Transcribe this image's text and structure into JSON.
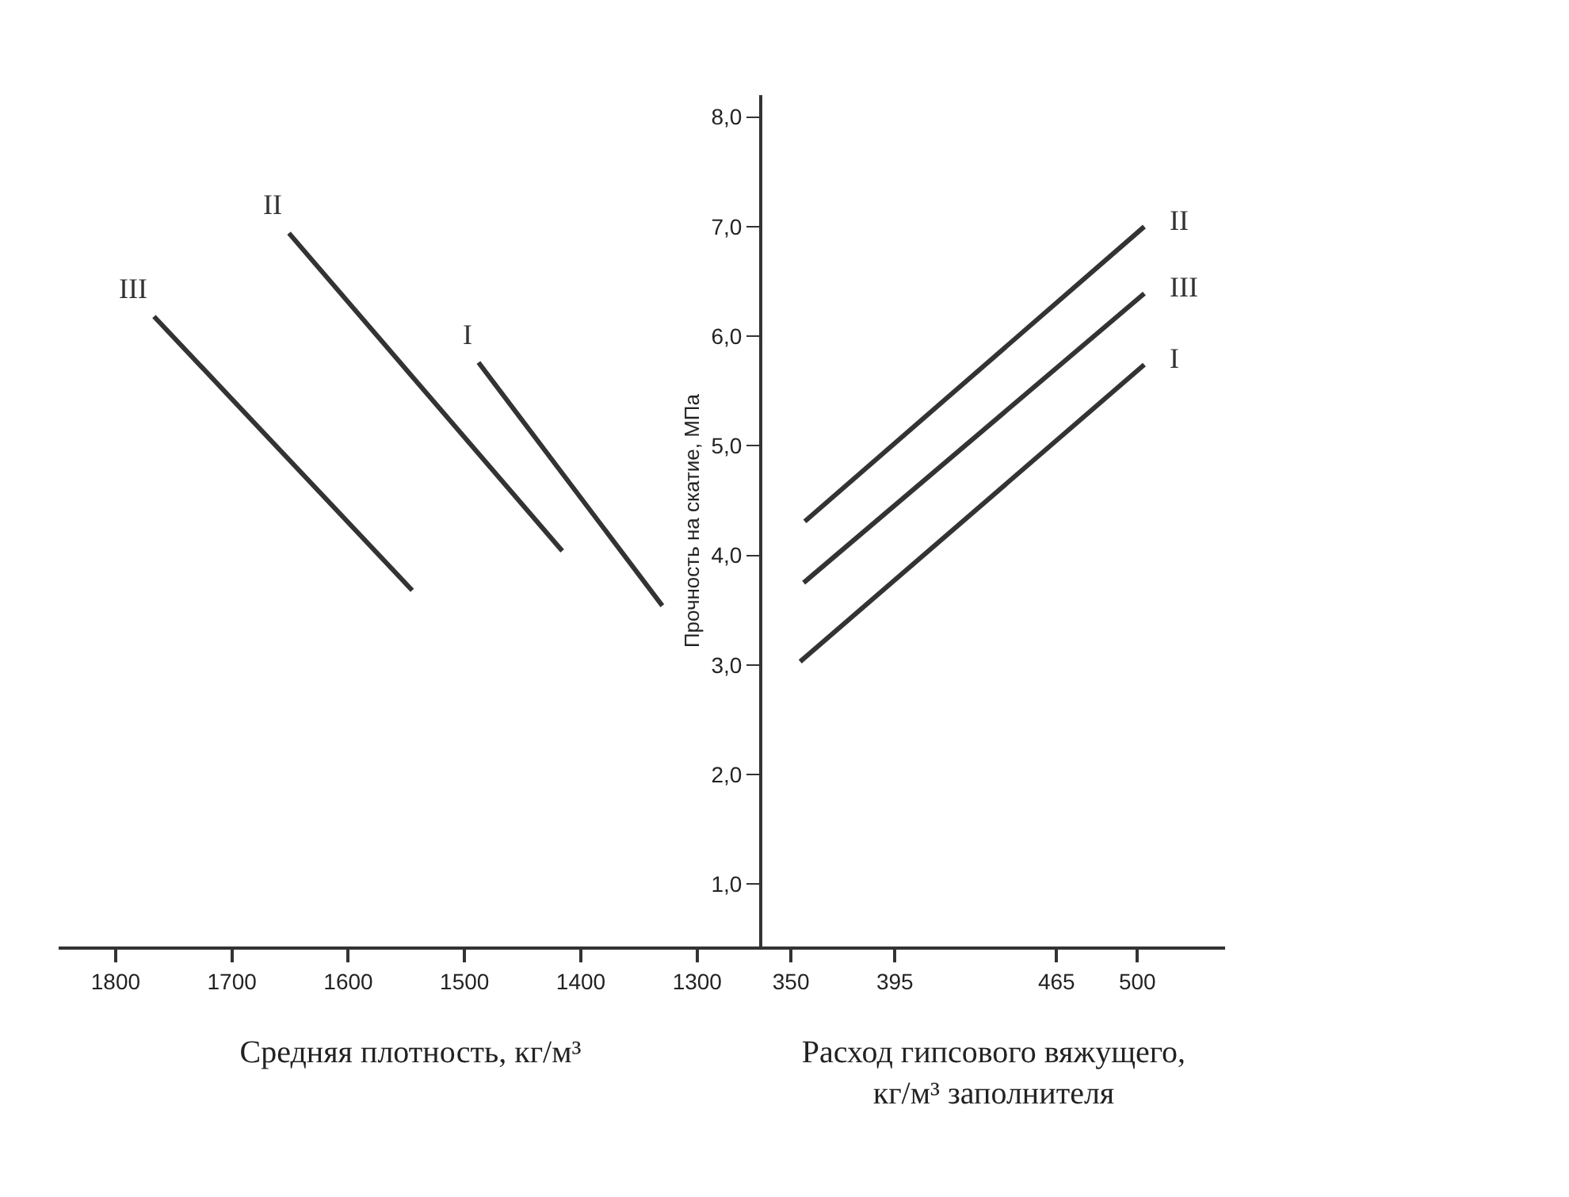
{
  "chart_data": [
    {
      "type": "line",
      "xlabel": "Средняя плотность, кг/м³",
      "xlim": [
        1849,
        1244
      ],
      "xticks": [
        1800,
        1700,
        1600,
        1500,
        1400,
        1300
      ],
      "ylim": [
        0.43,
        8.2
      ],
      "tick_labels": "x",
      "marker": "none",
      "line_style": "solid",
      "series": [
        {
          "name": "III",
          "color": "#333333",
          "x": [
            1767,
            1545
          ],
          "values": [
            6.18,
            3.68
          ]
        },
        {
          "name": "II",
          "color": "#333333",
          "x": [
            1651,
            1416
          ],
          "values": [
            6.94,
            4.04
          ]
        },
        {
          "name": "I",
          "color": "#333333",
          "x": [
            1488,
            1330
          ],
          "values": [
            5.76,
            3.54
          ]
        }
      ]
    },
    {
      "type": "line",
      "xlabel": "Расход гипсового вяжущего,\nкг/м³ заполнителя",
      "ylabel": "Прочность на скатие, МПа",
      "xlim": [
        337.6,
        538
      ],
      "xticks": [
        350,
        395,
        465,
        500
      ],
      "ylim": [
        0.43,
        8.2
      ],
      "yticks": [
        {
          "value": 1,
          "label": "1,0"
        },
        {
          "value": 2,
          "label": "2,0"
        },
        {
          "value": 3,
          "label": "3,0"
        },
        {
          "value": 4,
          "label": "4,0"
        },
        {
          "value": 5,
          "label": "5,0"
        },
        {
          "value": 6,
          "label": "6,0"
        },
        {
          "value": 7,
          "label": "7,0"
        },
        {
          "value": 8,
          "label": "8,0"
        }
      ],
      "marker": "none",
      "line_style": "solid",
      "series": [
        {
          "name": "II",
          "color": "#333333",
          "x": [
            356,
            503
          ],
          "values": [
            4.31,
            7.0
          ]
        },
        {
          "name": "III",
          "color": "#333333",
          "x": [
            355.5,
            503
          ],
          "values": [
            3.75,
            6.39
          ]
        },
        {
          "name": "I",
          "color": "#333333",
          "x": [
            354,
            503
          ],
          "values": [
            3.03,
            5.74
          ]
        }
      ]
    }
  ]
}
